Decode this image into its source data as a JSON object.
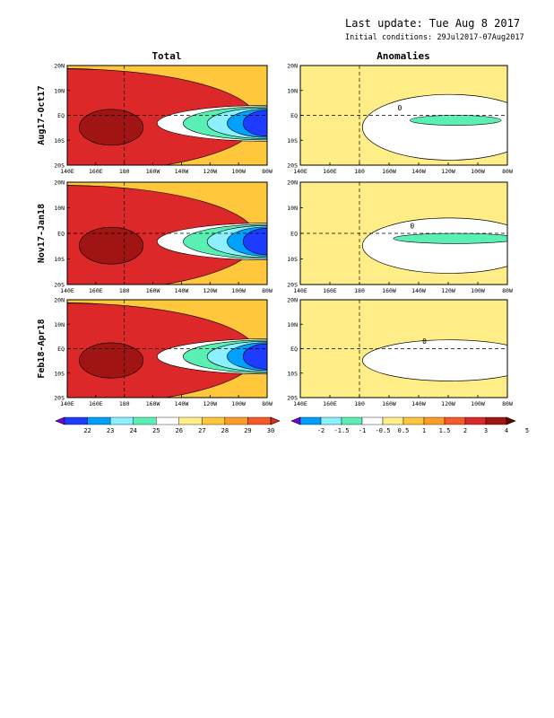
{
  "header": {
    "last_update": "Last update: Tue Aug  8 2017",
    "initial_conditions": "Initial conditions: 29Jul2017-07Aug2017"
  },
  "chart_data": {
    "type": "heatmap",
    "column_titles": [
      "Total",
      "Anomalies"
    ],
    "row_labels": [
      "Aug17-Oct17",
      "Nov17-Jan18",
      "Feb18-Apr18"
    ],
    "x_ticks": [
      "140E",
      "160E",
      "180",
      "160W",
      "140W",
      "120W",
      "100W",
      "80W"
    ],
    "y_ticks": [
      "20N",
      "10N",
      "EQ",
      "10S",
      "20S"
    ],
    "total_colorbar": {
      "labels": [
        "22",
        "23",
        "24",
        "25",
        "26",
        "27",
        "28",
        "29",
        "30"
      ],
      "colors": [
        "#7a00dc",
        "#1e3cff",
        "#00a0ff",
        "#8cf0ff",
        "#5af0b4",
        "#ffffff",
        "#ffee88",
        "#ffc83c",
        "#ff9c28",
        "#f55a28",
        "#dc2828"
      ]
    },
    "anomaly_colorbar": {
      "labels": [
        "-2",
        "-1.5",
        "-1",
        "-0.5",
        "0.5",
        "1",
        "1.5",
        "2",
        "3",
        "4",
        "5"
      ],
      "colors": [
        "#7a00dc",
        "#00a0ff",
        "#8cf0ff",
        "#5af0b4",
        "#ffffff",
        "#ffee88",
        "#ffc83c",
        "#ff9c28",
        "#f55a28",
        "#dc2828",
        "#a01414",
        "#6e0000"
      ]
    },
    "contour_labels": [
      "0",
      "0",
      "0",
      "0",
      "0"
    ],
    "fields": {
      "total_ramp": [
        "#dc2828",
        "#f55a28",
        "#ff9c28",
        "#ffc83c",
        "#ffee88",
        "#ffffff",
        "#5af0b4",
        "#8cf0ff",
        "#00a0ff",
        "#1e3cff"
      ],
      "warm_pool": "#a01414",
      "anomaly_pos": "#ffee88",
      "anomaly_neg": "#5af0b4"
    }
  }
}
